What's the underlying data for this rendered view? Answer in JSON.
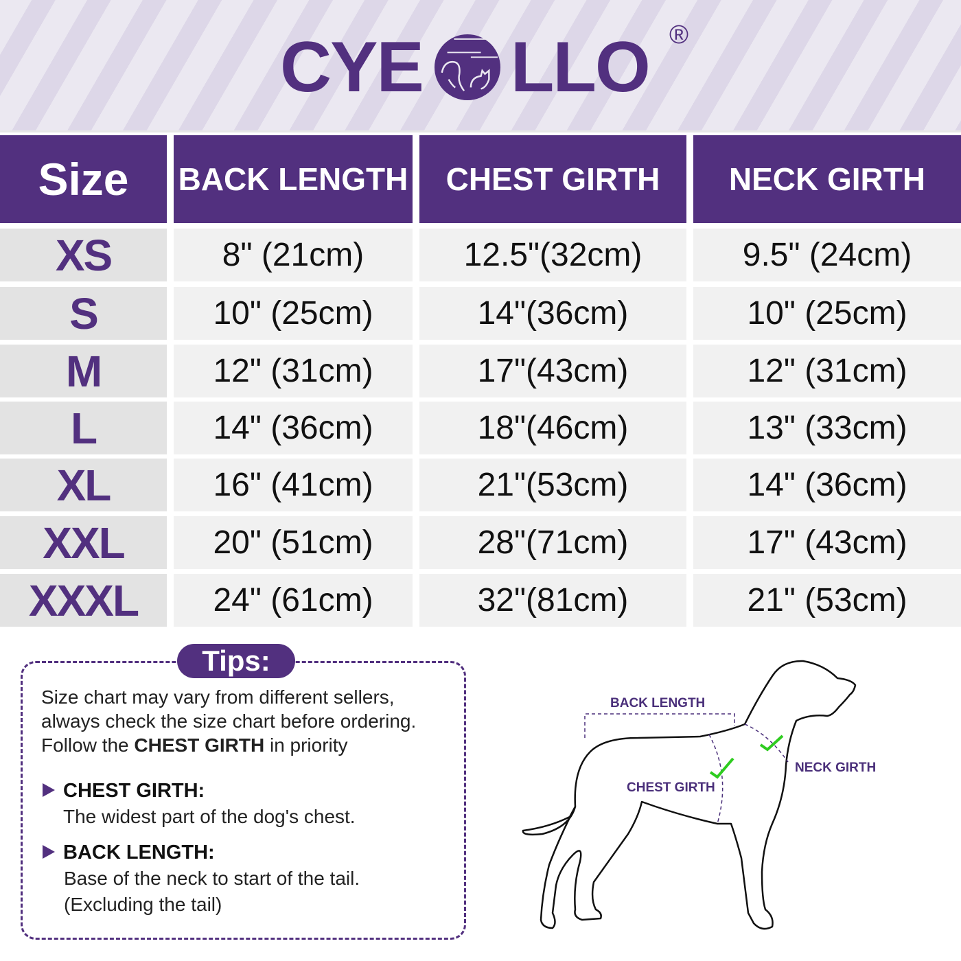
{
  "brand": {
    "name_left": "CYE",
    "name_right": "LLO",
    "registered": "®",
    "color": "#52307f"
  },
  "table": {
    "headers": [
      "Size",
      "BACK LENGTH",
      "CHEST GIRTH",
      "NECK GIRTH"
    ],
    "rows": [
      {
        "size": "XS",
        "back": "8\" (21cm)",
        "chest": "12.5\"(32cm)",
        "neck": "9.5\" (24cm)"
      },
      {
        "size": "S",
        "back": "10\" (25cm)",
        "chest": "14\"(36cm)",
        "neck": "10\" (25cm)"
      },
      {
        "size": "M",
        "back": "12\" (31cm)",
        "chest": "17\"(43cm)",
        "neck": "12\" (31cm)"
      },
      {
        "size": "L",
        "back": "14\" (36cm)",
        "chest": "18\"(46cm)",
        "neck": "13\" (33cm)"
      },
      {
        "size": "XL",
        "back": "16\" (41cm)",
        "chest": "21\"(53cm)",
        "neck": "14\" (36cm)"
      },
      {
        "size": "XXL",
        "back": "20\" (51cm)",
        "chest": "28\"(71cm)",
        "neck": "17\" (43cm)"
      },
      {
        "size": "XXXL",
        "back": "24\" (61cm)",
        "chest": "32\"(81cm)",
        "neck": "21\" (53cm)"
      }
    ]
  },
  "tips": {
    "title": "Tips:",
    "line1": "Size chart may vary from different sellers,",
    "line2": "always check the size chart before ordering.",
    "line3_pre": "Follow the ",
    "line3_bold": "CHEST GIRTH",
    "line3_post": " in priority",
    "items": [
      {
        "title": "CHEST GIRTH:",
        "desc1": "The widest part of the dog's chest.",
        "desc2": ""
      },
      {
        "title": "BACK LENGTH:",
        "desc1": "Base of the neck to start of the tail.",
        "desc2": "(Excluding the tail)"
      }
    ]
  },
  "diagram": {
    "back_length": "BACK LENGTH",
    "chest_girth": "CHEST GIRTH",
    "neck_girth": "NECK GIRTH",
    "check_color": "#2ecc1f"
  }
}
